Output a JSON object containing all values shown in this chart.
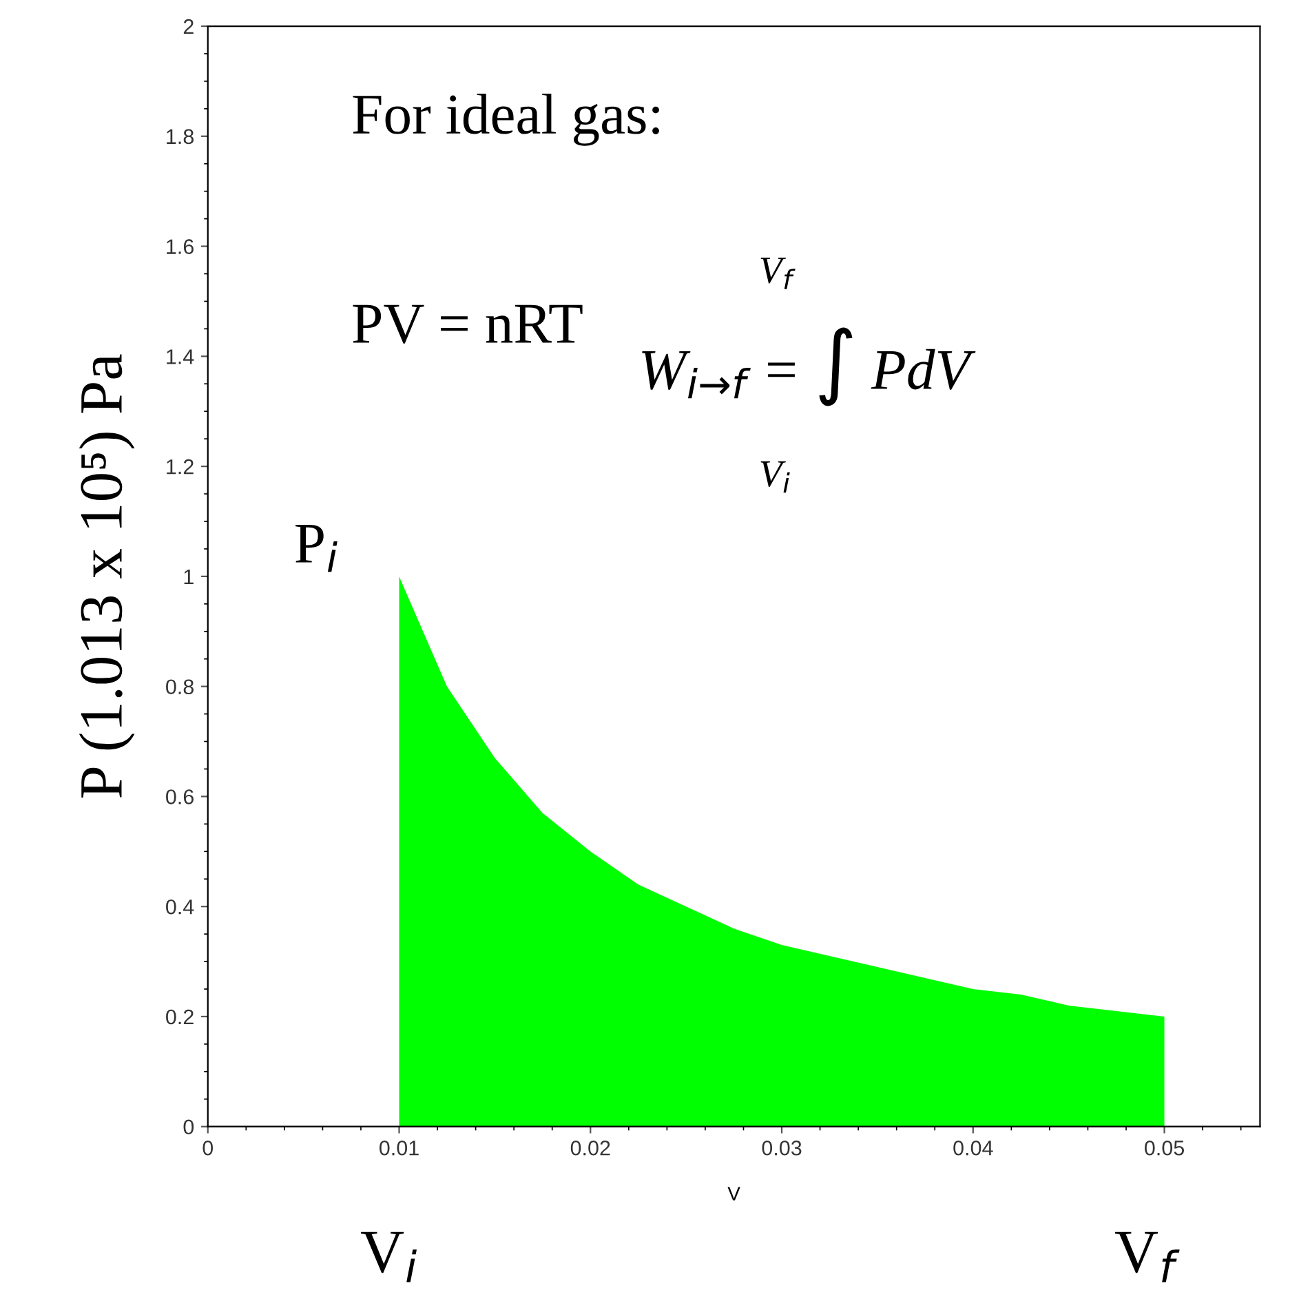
{
  "chart_data": {
    "type": "area",
    "xlabel": "V",
    "ylabel": "P (1.013 x 10⁵) Pa",
    "x": [
      0.01,
      0.0125,
      0.015,
      0.0175,
      0.02,
      0.0225,
      0.025,
      0.0275,
      0.03,
      0.0325,
      0.035,
      0.0375,
      0.04,
      0.0425,
      0.045,
      0.0475,
      0.05
    ],
    "series": [
      {
        "color": "#00ff00",
        "values": [
          1.0,
          0.8,
          0.67,
          0.57,
          0.5,
          0.44,
          0.4,
          0.36,
          0.33,
          0.31,
          0.29,
          0.27,
          0.25,
          0.24,
          0.22,
          0.21,
          0.2
        ]
      }
    ],
    "xlim": [
      0,
      0.055
    ],
    "ylim": [
      0,
      2
    ],
    "xticks": [
      0,
      0.01,
      0.02,
      0.03,
      0.04,
      0.05
    ],
    "yticks": [
      0,
      0.2,
      0.4,
      0.6,
      0.8,
      1,
      1.2,
      1.4,
      1.6,
      1.8,
      2
    ],
    "grid": false,
    "legend": false,
    "annotations": [
      "For ideal gas:",
      "PV = nRT",
      "W$_{i→f}$ = ∫ PdV",
      "V$_{f}$",
      "V$_{i}$",
      "P$_{i}$",
      "V$_{i}$",
      "V$_{f}$"
    ]
  }
}
